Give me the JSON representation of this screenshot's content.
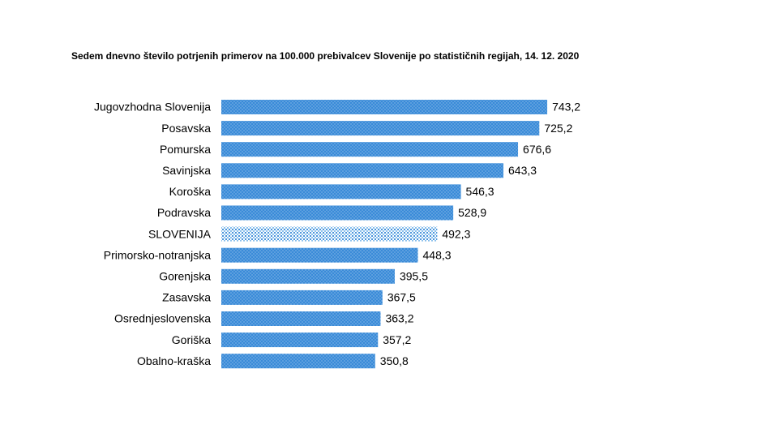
{
  "chart_data": {
    "type": "barh",
    "title": "Sedem dnevno število potrjenih primerov na 100.000 prebivalcev Slovenije po statističnih regijah, 14. 12. 2020",
    "categories": [
      "Jugovzhodna Slovenija",
      "Posavska",
      "Pomurska",
      "Savinjska",
      "Koroška",
      "Podravska",
      "SLOVENIJA",
      "Primorsko-notranjska",
      "Gorenjska",
      "Zasavska",
      "Osrednjeslovenska",
      "Goriška",
      "Obalno-kraška"
    ],
    "values": [
      743.2,
      725.2,
      676.6,
      643.3,
      546.3,
      528.9,
      492.3,
      448.3,
      395.5,
      367.5,
      363.2,
      357.2,
      350.8
    ],
    "value_labels": [
      "743,2",
      "725,2",
      "676,6",
      "643,3",
      "546,3",
      "528,9",
      "492,3",
      "448,3",
      "395,5",
      "367,5",
      "363,2",
      "357,2",
      "350,8"
    ],
    "color": "#3a8bd8",
    "highlight_color": "#7fbbec",
    "highlight_index": 6
  }
}
